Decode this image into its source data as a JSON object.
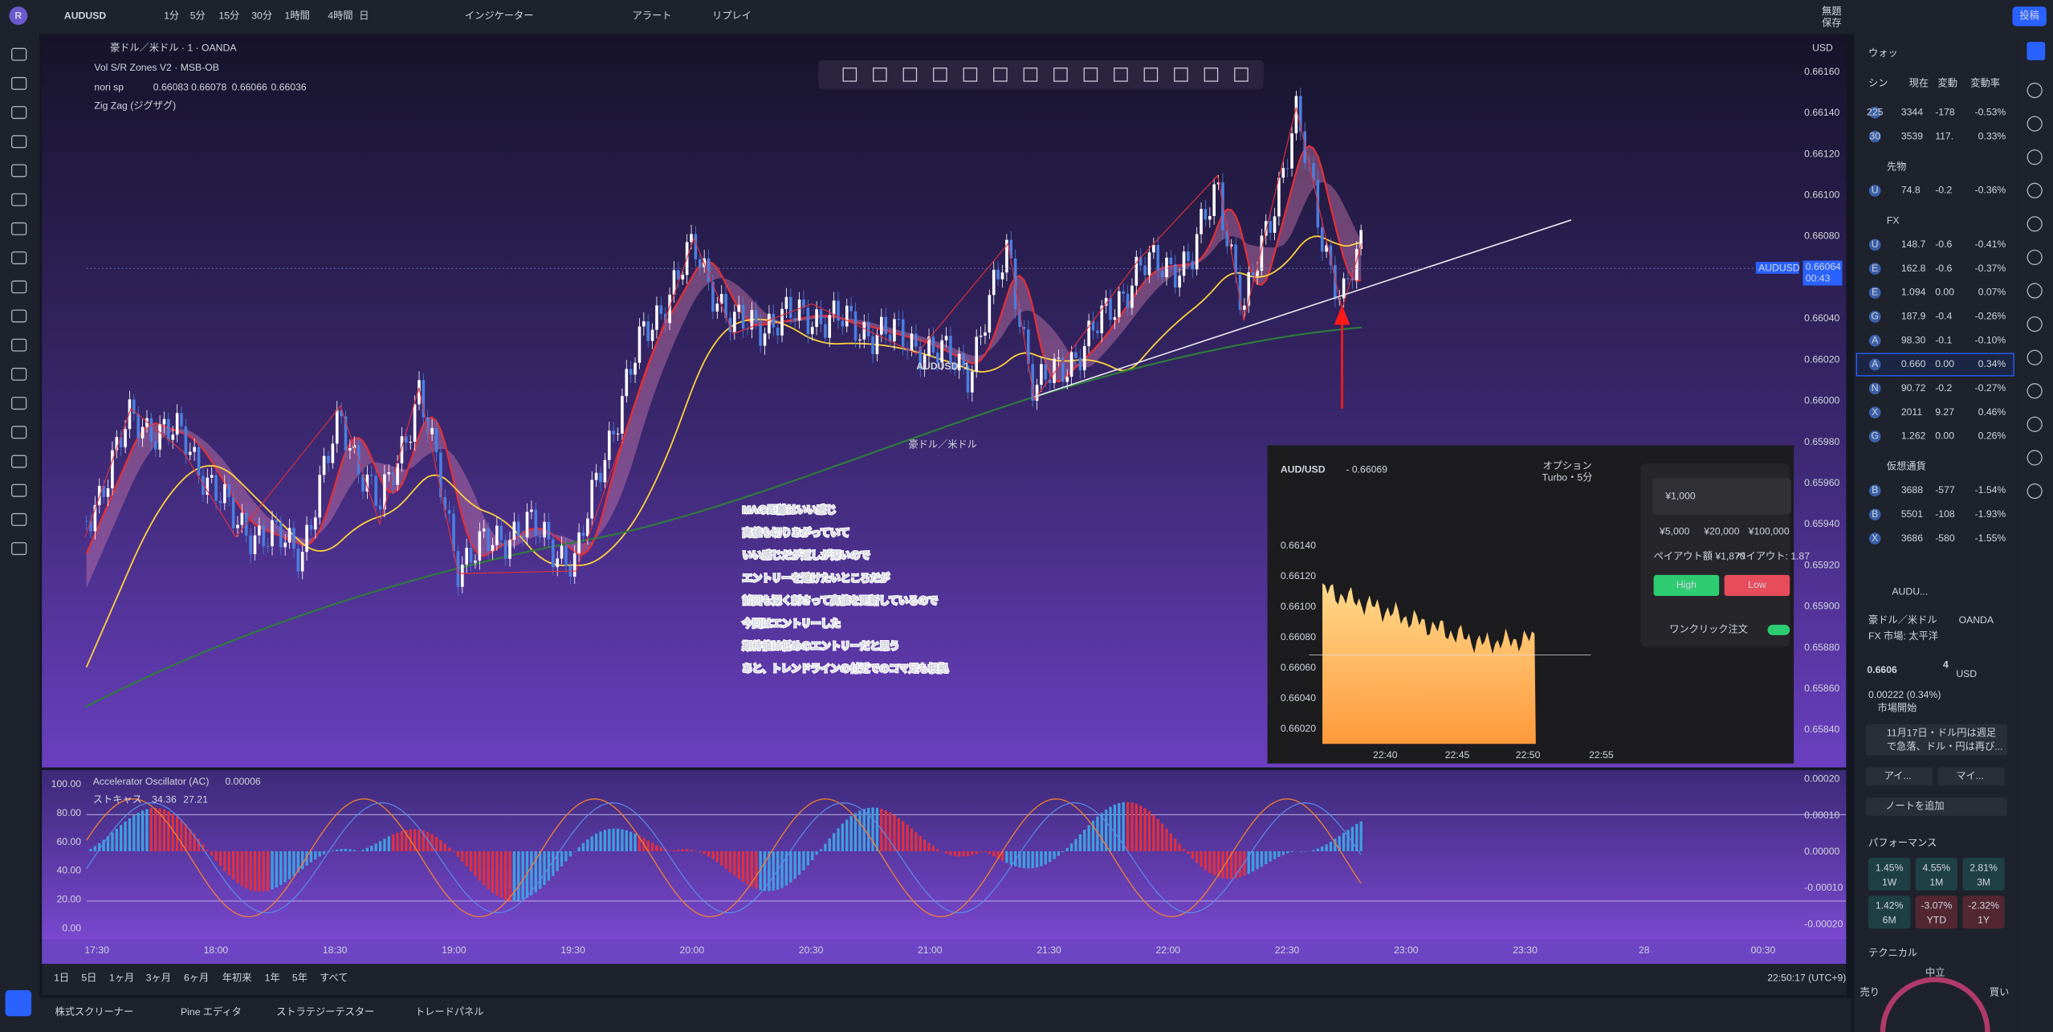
{
  "toolbar": {
    "logo": "R",
    "symbol": "AUDUSD",
    "intervals": [
      "1分",
      "5分",
      "15分",
      "30分",
      "1時間",
      "4時間",
      "日"
    ],
    "indicators": "インジケーター",
    "alert": "アラート",
    "replay": "リプレイ",
    "layout_name": "無題",
    "layout_sub": "保存",
    "publish": "投稿"
  },
  "legend": {
    "title": "豪ドル／米ドル · 1 · OANDA",
    "line2": "Vol S/R Zones V2 · MSB-OB",
    "nori_label": "nori sp",
    "nori_values": [
      "0.66083",
      "0.66078",
      "0.66066",
      "0.66036"
    ],
    "zigzag": "Zig Zag (ジグザグ)"
  },
  "watermark": {
    "symbol": "AUDUSD, 1",
    "name": "豪ドル／米ドル"
  },
  "price_axis": {
    "currency": "USD",
    "ticks": [
      "0.66160",
      "0.66140",
      "0.66120",
      "0.66100",
      "0.66080",
      "0.66040",
      "0.66020",
      "0.66000",
      "0.65980",
      "0.65960",
      "0.65940",
      "0.65920",
      "0.65900",
      "0.65880",
      "0.65860",
      "0.65840"
    ],
    "last_price": "0.66064",
    "countdown": "00:43",
    "symbol_tag": "AUDUSD"
  },
  "annotation": [
    "MAの距離はいい感じ",
    "高値も切りあがっていて",
    "いい感じだが返しが深いので",
    "エントリーを避けたいところだが",
    "前回も深く刺さって高値を更新しているので",
    "今回はエントリーした",
    "期待値は低めのエントリーだと思う",
    "あと、トレンドラインの付近でのコマ足も根拠"
  ],
  "widget": {
    "pair": "AUD/USD",
    "price": "- 0.66069",
    "option_label": "オプション",
    "option_type": "Turbo・5分",
    "amount": "¥1,000",
    "presets": [
      "¥5,000",
      "¥20,000",
      "¥100,000"
    ],
    "payout_amount": "ペイアウト額 ¥1,870",
    "payout_rate": "ペイアウト: 1.87",
    "high": "High",
    "low": "Low",
    "one_click": "ワンクリック注文",
    "yticks": [
      "0.66140",
      "0.66120",
      "0.66100",
      "0.66080",
      "0.66060",
      "0.66040",
      "0.66020"
    ],
    "xticks": [
      "22:40",
      "22:45",
      "22:50",
      "22:55"
    ]
  },
  "oscillator": {
    "ac_label": "Accelerator Oscillator (AC)",
    "ac_value": "0.00006",
    "stoch_label": "ストキャス",
    "stoch_k": "34.36",
    "stoch_d": "27.21",
    "left_ticks": [
      "100.00",
      "80.00",
      "60.00",
      "40.00",
      "20.00",
      "0.00"
    ],
    "right_ticks": [
      "0.00020",
      "0.00010",
      "0.00000",
      "-0.00010",
      "-0.00020"
    ]
  },
  "time_axis": [
    "17:30",
    "18:00",
    "18:30",
    "19:00",
    "19:30",
    "20:00",
    "20:30",
    "21:00",
    "21:30",
    "22:00",
    "22:30",
    "23:00",
    "23:30",
    "28",
    "00:30"
  ],
  "bottom_bar": {
    "ranges": [
      "1日",
      "5日",
      "1ヶ月",
      "3ヶ月",
      "6ヶ月",
      "年初来",
      "1年",
      "5年",
      "すべて"
    ],
    "clock": "22:50:17 (UTC+9)",
    "tabs": [
      "株式スクリーナー",
      "Pine エディタ",
      "ストラテジーテスター",
      "トレードパネル"
    ]
  },
  "watchlist": {
    "title": "ウォッ",
    "columns": [
      "シン",
      "現在",
      "変動",
      "変動率"
    ],
    "sections": [
      {
        "rows": [
          {
            "s": "225",
            "p": "3344",
            "c": "-178",
            "r": "-0.53%"
          },
          {
            "s": "30",
            "p": "3539",
            "c": "117.",
            "r": "0.33%"
          }
        ]
      },
      {
        "name": "先物",
        "rows": [
          {
            "s": "U",
            "p": "74.8",
            "c": "-0.2",
            "r": "-0.36%"
          }
        ]
      },
      {
        "name": "FX",
        "rows": [
          {
            "s": "U",
            "p": "148.7",
            "c": "-0.6",
            "r": "-0.41%"
          },
          {
            "s": "E",
            "p": "162.8",
            "c": "-0.6",
            "r": "-0.37%"
          },
          {
            "s": "E",
            "p": "1.094",
            "c": "0.00",
            "r": "0.07%"
          },
          {
            "s": "G",
            "p": "187.9",
            "c": "-0.4",
            "r": "-0.26%"
          },
          {
            "s": "A",
            "p": "98.30",
            "c": "-0.1",
            "r": "-0.10%"
          },
          {
            "s": "A",
            "p": "0.660",
            "c": "0.00",
            "r": "0.34%",
            "selected": true
          },
          {
            "s": "N",
            "p": "90.72",
            "c": "-0.2",
            "r": "-0.27%"
          },
          {
            "s": "X",
            "p": "2011",
            "c": "9.27",
            "r": "0.46%"
          },
          {
            "s": "G",
            "p": "1.262",
            "c": "0.00",
            "r": "0.26%"
          }
        ]
      },
      {
        "name": "仮想通貨",
        "rows": [
          {
            "s": "B",
            "p": "3688",
            "c": "-577",
            "r": "-1.54%"
          },
          {
            "s": "B",
            "p": "5501",
            "c": "-108",
            "r": "-1.93%"
          },
          {
            "s": "X",
            "p": "3686",
            "c": "-580",
            "r": "-1.55%"
          }
        ]
      }
    ]
  },
  "details": {
    "symbol": "AUDU...",
    "name": "豪ドル／米ドル",
    "exchange": "OANDA",
    "market": "FX 市場: 太平洋",
    "price": "0.6606",
    "price_small": "4",
    "currency": "USD",
    "change": "0.00222 (0.34%)",
    "status": "市場開始",
    "news": [
      "11月17日・ドル円は週足",
      "で急落、ドル・円は再び..."
    ],
    "buttons": [
      "アイ...",
      "マイ..."
    ],
    "add_note": "ノートを追加",
    "performance_title": "パフォーマンス",
    "performance": [
      {
        "v": "1.45%",
        "p": "1W"
      },
      {
        "v": "4.55%",
        "p": "1M"
      },
      {
        "v": "2.81%",
        "p": "3M"
      },
      {
        "v": "1.42%",
        "p": "6M"
      },
      {
        "v": "-3.07%",
        "p": "YTD"
      },
      {
        "v": "-2.32%",
        "p": "1Y"
      }
    ],
    "technical_title": "テクニカル",
    "gauge": [
      "中立",
      "売り",
      "買い"
    ]
  }
}
